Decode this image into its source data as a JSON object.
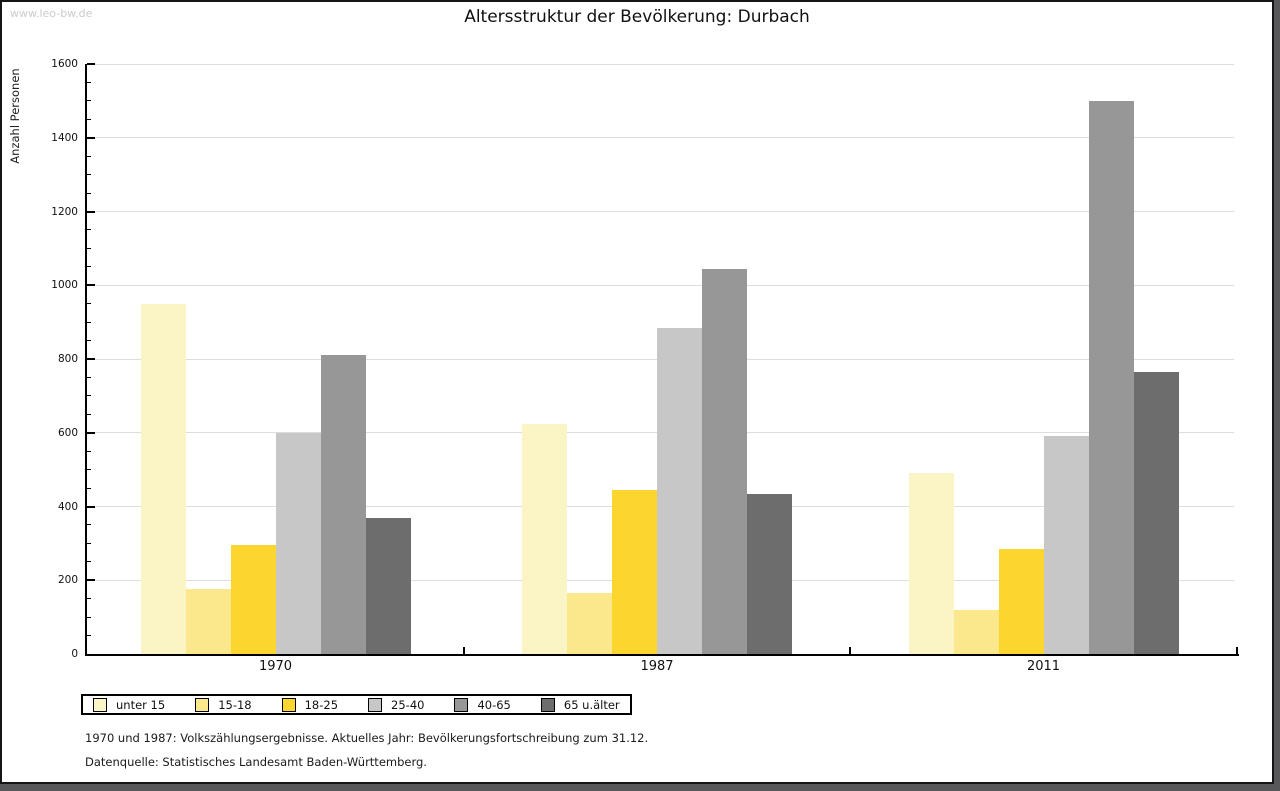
{
  "watermark": "www.leo-bw.de",
  "title": "Altersstruktur der Bevölkerung: Durbach",
  "chart_data": {
    "type": "bar",
    "title": "Altersstruktur der Bevölkerung: Durbach",
    "ylabel": "Anzahl Personen",
    "xlabel": "",
    "ylim": [
      0,
      1600
    ],
    "ytick_step": 200,
    "ytick_minor_step": 50,
    "grid": true,
    "legend_position": "bottom-left",
    "categories": [
      "1970",
      "1987",
      "2011"
    ],
    "series": [
      {
        "name": "unter 15",
        "color": "#FBF4C4",
        "values": [
          950,
          625,
          490
        ]
      },
      {
        "name": "15-18",
        "color": "#FCE88C",
        "values": [
          175,
          165,
          120
        ]
      },
      {
        "name": "18-25",
        "color": "#FDD52F",
        "values": [
          295,
          445,
          285
        ]
      },
      {
        "name": "25-40",
        "color": "#C7C7C7",
        "values": [
          600,
          885,
          590
        ]
      },
      {
        "name": "40-65",
        "color": "#979797",
        "values": [
          810,
          1045,
          1500
        ]
      },
      {
        "name": "65 u.älter",
        "color": "#6D6D6D",
        "values": [
          370,
          435,
          765
        ]
      }
    ]
  },
  "footnotes": [
    "1970 und 1987: Volkszählungsergebnisse. Aktuelles Jahr: Bevölkerungsfortschreibung zum 31.12.",
    "Datenquelle: Statistisches Landesamt Baden-Württemberg."
  ],
  "colors": {
    "frame": "#58585A",
    "grid": "#DDDDDD",
    "axis": "#000000",
    "watermark": "#CBCBCB"
  }
}
